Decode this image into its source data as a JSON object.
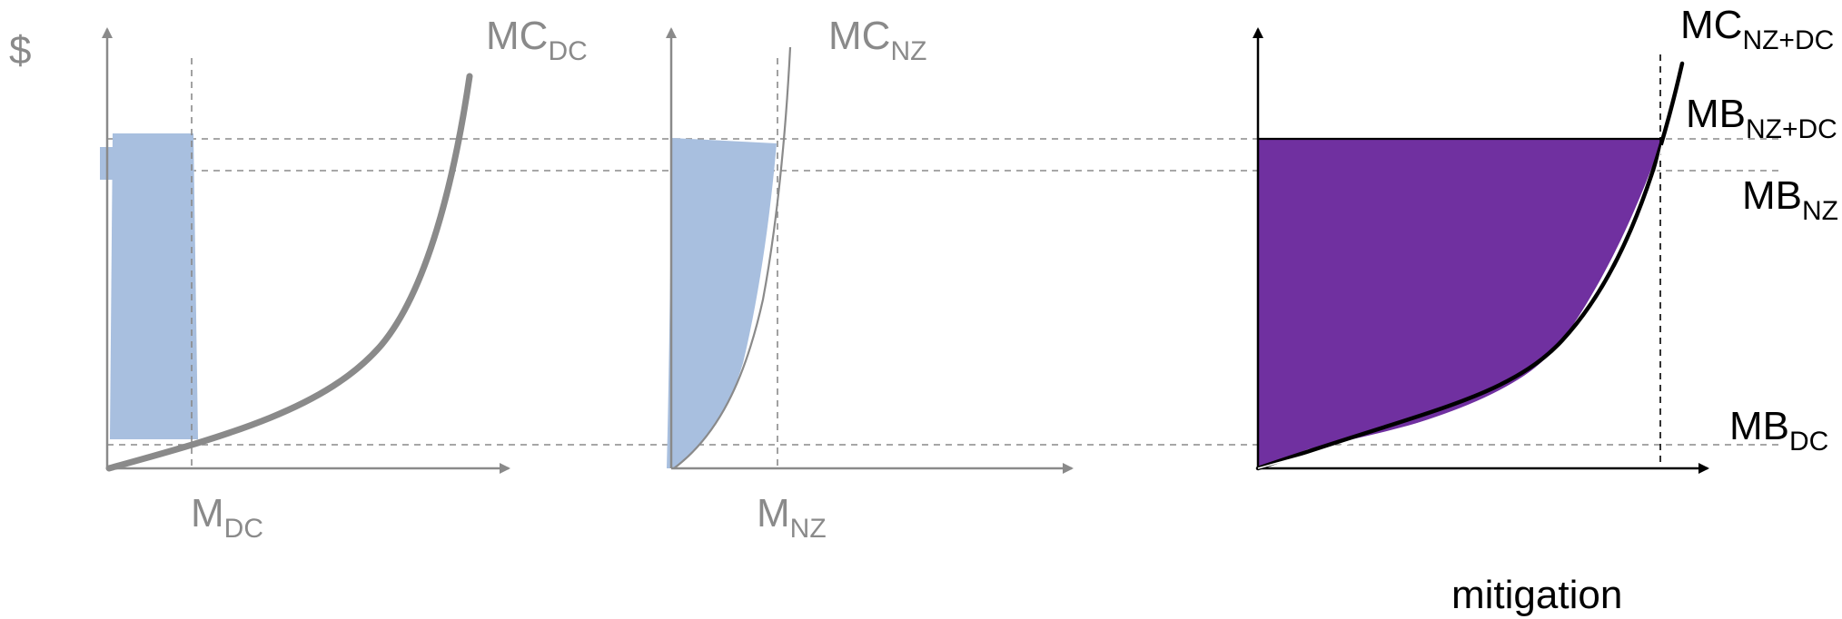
{
  "y_axis_label": "$",
  "x_axis_label": "mitigation",
  "colors": {
    "grey": "#8a8a8a",
    "blue_fill": "#a8bfdf",
    "purple_fill": "#7030a0",
    "black": "#000000"
  },
  "panels": {
    "dc": {
      "curve_main": "MC",
      "curve_sub": "DC",
      "quantity_main": "M",
      "quantity_sub": "DC"
    },
    "nz": {
      "curve_main": "MC",
      "curve_sub": "NZ",
      "quantity_main": "M",
      "quantity_sub": "NZ"
    },
    "combined": {
      "curve_main": "MC",
      "curve_sub": "NZ+DC",
      "benefit_levels": [
        {
          "main": "MB",
          "sub": "NZ+DC"
        },
        {
          "main": "MB",
          "sub": "NZ"
        },
        {
          "main": "MB",
          "sub": "DC"
        }
      ]
    }
  }
}
